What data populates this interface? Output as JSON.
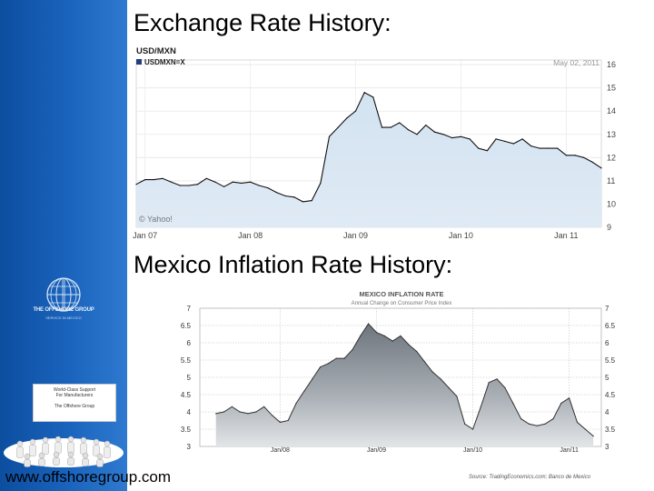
{
  "slide": {
    "heading_exchange": "Exchange Rate History:",
    "heading_inflation": "Mexico Inflation Rate History:",
    "footer_url": "www.offshoregroup.com"
  },
  "sidebar": {
    "logo_name": "THE OFFSHORE GROUP",
    "logo_tagline": "SERVICE IN MEXICO",
    "card_line_1": "World-Class Support",
    "card_line_2": "For Manufacturers",
    "card_brand": "The Offshore Group",
    "colors": {
      "sidebar_blue": "#1a5fb4"
    }
  },
  "chart_data": [
    {
      "type": "area",
      "title": "USD/MXN",
      "legend": "USDMXN=X",
      "date_stamp": "May 02, 2011",
      "watermark": "© Yahoo!",
      "x_ticks": [
        "Jan 07",
        "Jan 08",
        "Jan 09",
        "Jan 10",
        "Jan 11"
      ],
      "y_ticks": [
        16,
        15,
        14,
        13,
        12,
        11,
        10,
        9
      ],
      "ylim": [
        9,
        16.2
      ],
      "y_axis_side": "right",
      "grid": true,
      "colors": {
        "fill": "#d3e3f1",
        "line": "#111111"
      },
      "x": [
        "2006-12",
        "2007-01",
        "2007-02",
        "2007-03",
        "2007-04",
        "2007-05",
        "2007-06",
        "2007-07",
        "2007-08",
        "2007-09",
        "2007-10",
        "2007-11",
        "2007-12",
        "2008-01",
        "2008-02",
        "2008-03",
        "2008-04",
        "2008-05",
        "2008-06",
        "2008-07",
        "2008-08",
        "2008-09",
        "2008-10",
        "2008-11",
        "2008-12",
        "2009-01",
        "2009-02",
        "2009-03",
        "2009-04",
        "2009-05",
        "2009-06",
        "2009-07",
        "2009-08",
        "2009-09",
        "2009-10",
        "2009-11",
        "2009-12",
        "2010-01",
        "2010-02",
        "2010-03",
        "2010-04",
        "2010-05",
        "2010-06",
        "2010-07",
        "2010-08",
        "2010-09",
        "2010-10",
        "2010-11",
        "2010-12",
        "2011-01",
        "2011-02",
        "2011-03",
        "2011-04",
        "2011-05"
      ],
      "values": [
        10.85,
        11.05,
        11.05,
        11.1,
        10.95,
        10.8,
        10.8,
        10.85,
        11.1,
        10.95,
        10.75,
        10.95,
        10.9,
        10.95,
        10.8,
        10.7,
        10.5,
        10.35,
        10.3,
        10.1,
        10.15,
        10.9,
        12.9,
        13.3,
        13.7,
        14.0,
        14.8,
        14.6,
        13.3,
        13.3,
        13.5,
        13.2,
        13.0,
        13.4,
        13.1,
        13.0,
        12.85,
        12.9,
        12.8,
        12.4,
        12.3,
        12.8,
        12.7,
        12.6,
        12.8,
        12.5,
        12.4,
        12.4,
        12.4,
        12.1,
        12.1,
        12.0,
        11.8,
        11.55
      ]
    },
    {
      "type": "area",
      "title": "MEXICO INFLATION RATE",
      "subtitle": "Annual Change on Consumer Price Index",
      "x_ticks": [
        "Jan/08",
        "Jan/09",
        "Jan/10",
        "Jan/11"
      ],
      "y_ticks": [
        "7",
        "6.5",
        "6",
        "5.5",
        "5",
        "4.5",
        "4",
        "3.5",
        "3"
      ],
      "ylim": [
        3,
        7
      ],
      "y_axis_side": "both",
      "grid": true,
      "source": "Source: TradingEconomics.com; Banco de Mexico",
      "colors": {
        "fill_top": "#6e757d",
        "fill_bottom": "#d9dde1",
        "line": "#333333"
      },
      "x": [
        "2007-05",
        "2007-06",
        "2007-07",
        "2007-08",
        "2007-09",
        "2007-10",
        "2007-11",
        "2007-12",
        "2008-01",
        "2008-02",
        "2008-03",
        "2008-04",
        "2008-05",
        "2008-06",
        "2008-07",
        "2008-08",
        "2008-09",
        "2008-10",
        "2008-11",
        "2008-12",
        "2009-01",
        "2009-02",
        "2009-03",
        "2009-04",
        "2009-05",
        "2009-06",
        "2009-07",
        "2009-08",
        "2009-09",
        "2009-10",
        "2009-11",
        "2009-12",
        "2010-01",
        "2010-02",
        "2010-03",
        "2010-04",
        "2010-05",
        "2010-06",
        "2010-07",
        "2010-08",
        "2010-09",
        "2010-10",
        "2010-11",
        "2010-12",
        "2011-01",
        "2011-02",
        "2011-03",
        "2011-04"
      ],
      "values": [
        3.95,
        4.0,
        4.15,
        4.0,
        3.95,
        4.0,
        4.15,
        3.9,
        3.7,
        3.75,
        4.25,
        4.6,
        4.95,
        5.3,
        5.4,
        5.55,
        5.55,
        5.8,
        6.2,
        6.55,
        6.3,
        6.2,
        6.05,
        6.2,
        5.95,
        5.75,
        5.45,
        5.15,
        4.95,
        4.7,
        4.45,
        3.65,
        3.5,
        4.15,
        4.85,
        4.95,
        4.7,
        4.25,
        3.8,
        3.65,
        3.6,
        3.65,
        3.8,
        4.25,
        4.4,
        3.7,
        3.5,
        3.3
      ]
    }
  ]
}
